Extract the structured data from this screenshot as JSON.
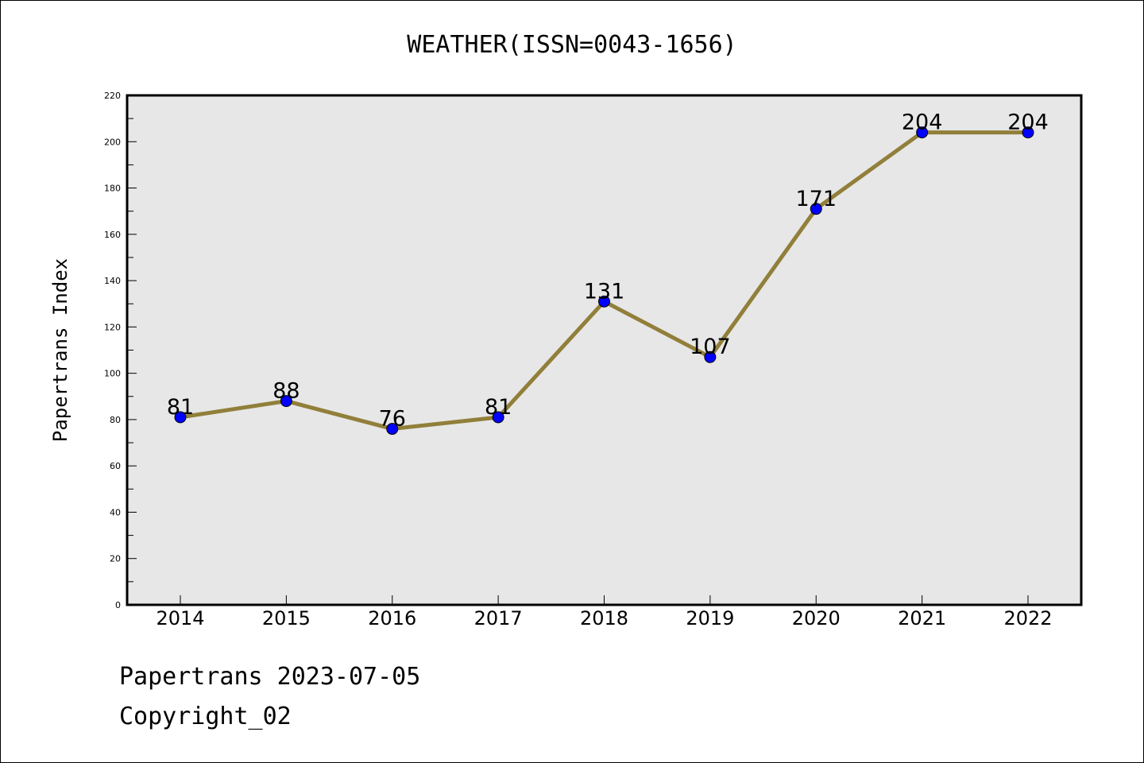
{
  "chart_data": {
    "type": "line",
    "title": "WEATHER(ISSN=0043-1656)",
    "xlabel": "",
    "ylabel": "Papertrans Index",
    "categories": [
      "2014",
      "2015",
      "2016",
      "2017",
      "2018",
      "2019",
      "2020",
      "2021",
      "2022"
    ],
    "series": [
      {
        "values": [
          81,
          88,
          76,
          81,
          131,
          107,
          171,
          204,
          204
        ],
        "line_color": "#917f3a",
        "marker_color": "#0000ff"
      }
    ],
    "ylim": [
      0,
      220
    ],
    "yticks": [
      "0",
      "20",
      "40",
      "60",
      "80",
      "100",
      "120",
      "140",
      "160",
      "180",
      "200",
      "220"
    ],
    "plot_background": "#e7e7e7",
    "grid": false,
    "data_labels": true
  },
  "footer": {
    "date_line": "Papertrans 2023-07-05",
    "copyright_line": "Copyright_02"
  }
}
